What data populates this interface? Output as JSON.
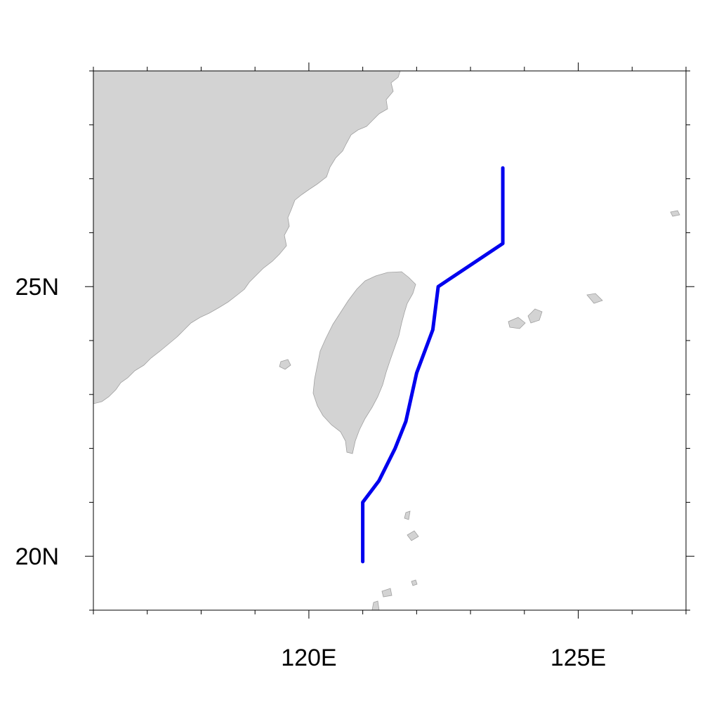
{
  "map": {
    "extent": {
      "lon_min": 116,
      "lon_max": 127,
      "lat_min": 19,
      "lat_max": 29
    },
    "land_color": "#d3d3d3",
    "coast_color": "#a0a0a0",
    "track_color": "#0000ee",
    "x_ticks": [
      {
        "value": 120,
        "label": "120E"
      },
      {
        "value": 125,
        "label": "125E"
      }
    ],
    "y_ticks": [
      {
        "value": 25,
        "label": "25N"
      },
      {
        "value": 20,
        "label": "20N"
      }
    ],
    "minor_step": 1
  },
  "chart_data": {
    "type": "line",
    "title": "",
    "xlabel": "",
    "ylabel": "",
    "xlim": [
      116,
      127
    ],
    "ylim": [
      19,
      29
    ],
    "series": [
      {
        "x": [
          121.0,
          121.0,
          121.3,
          121.6,
          121.8,
          122.0,
          122.3,
          122.4,
          123.6,
          123.6
        ],
        "y": [
          19.9,
          21.0,
          21.4,
          22.0,
          22.5,
          23.4,
          24.2,
          25.0,
          25.8,
          27.2
        ]
      }
    ]
  }
}
